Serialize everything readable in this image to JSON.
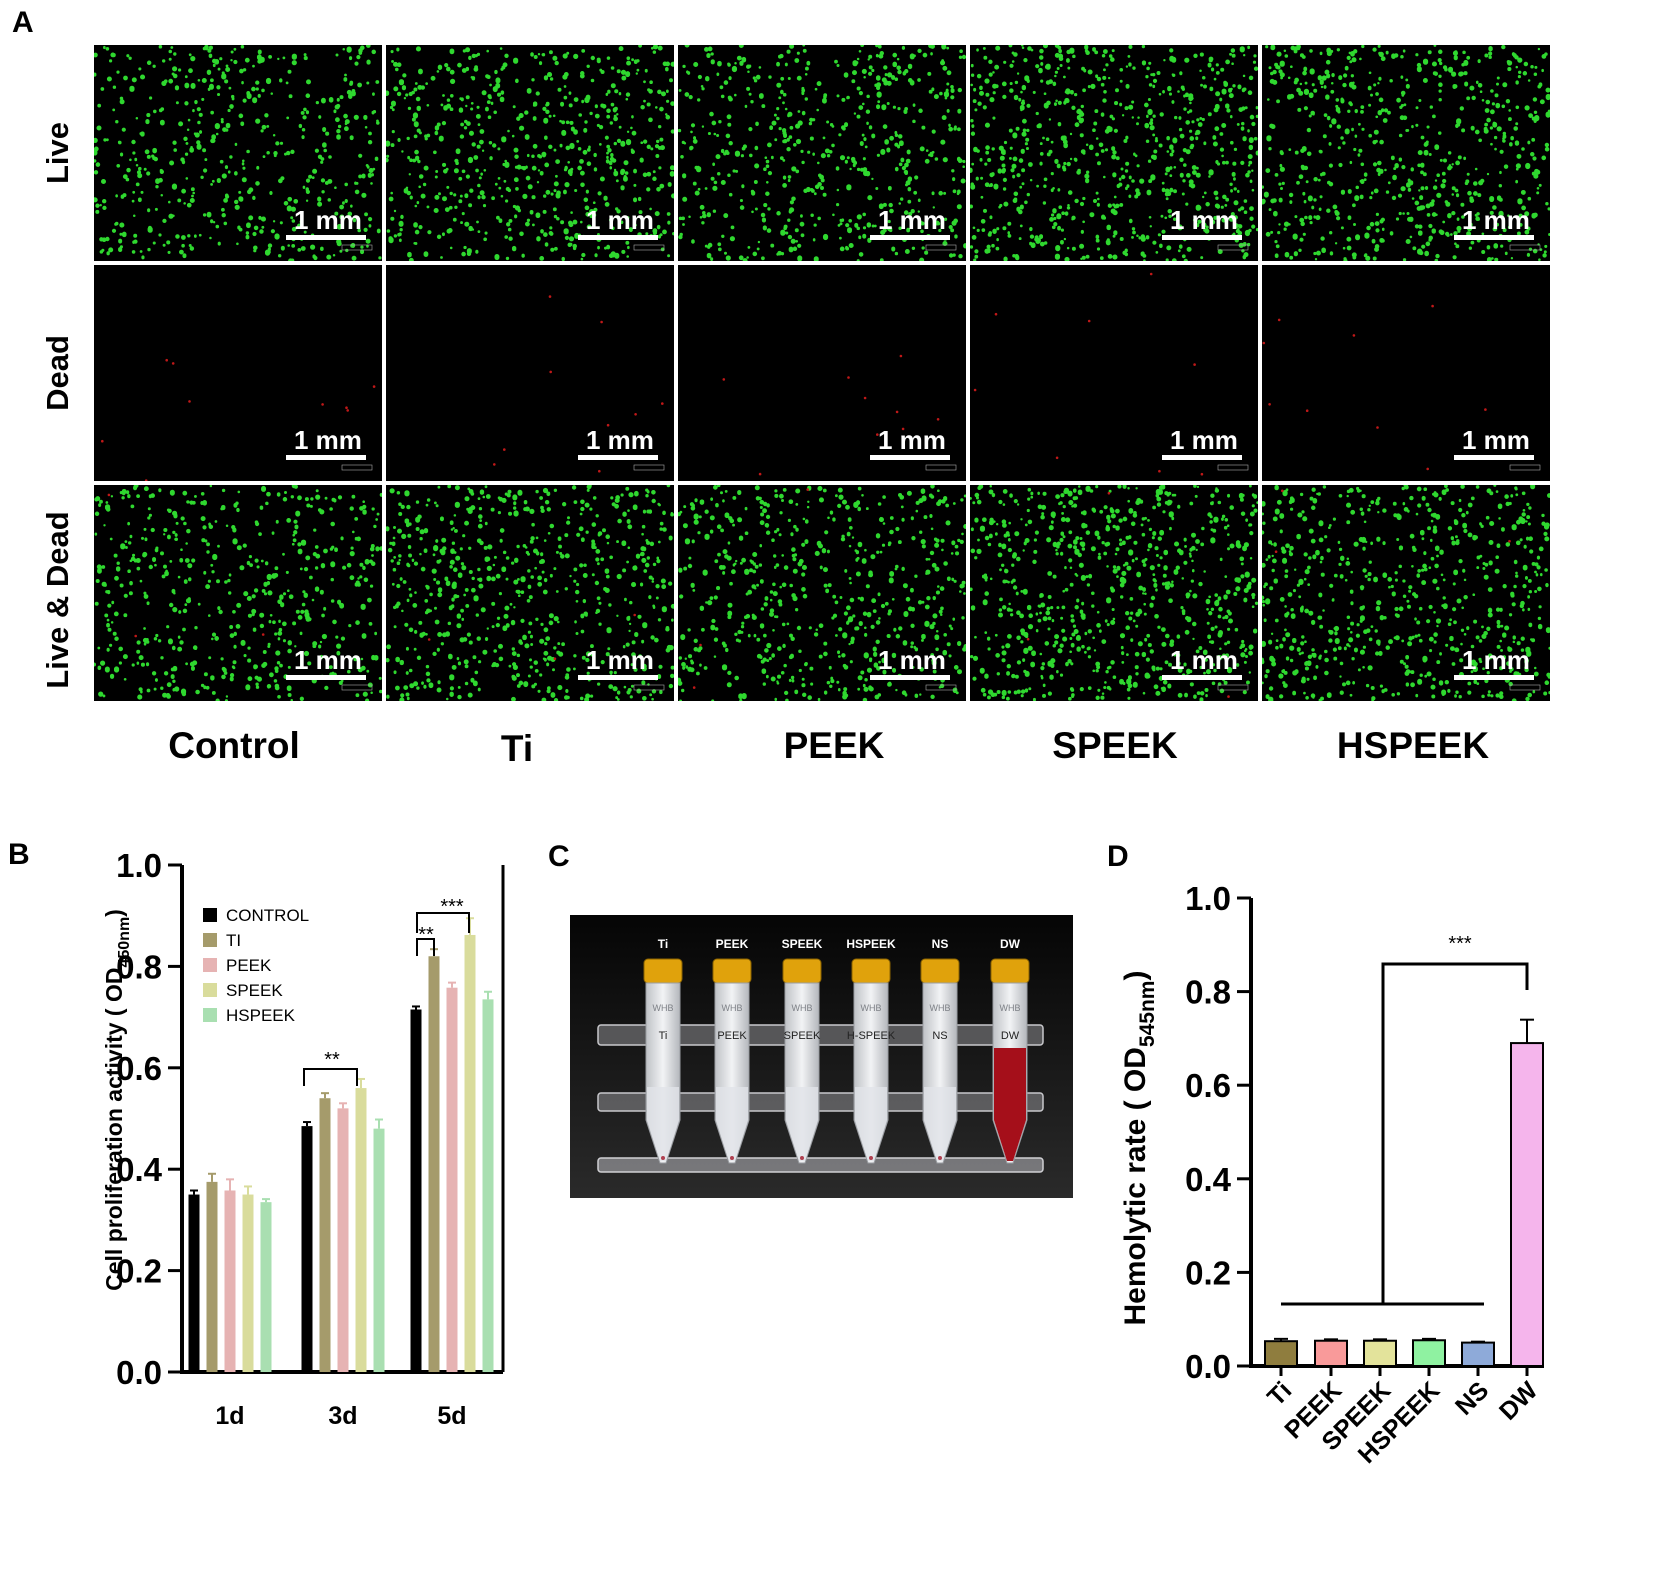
{
  "panel_a": {
    "letter": "A",
    "rows": [
      "Live",
      "Dead",
      "Live & Dead"
    ],
    "columns": [
      "Control",
      "Ti",
      "PEEK",
      "SPEEK",
      "HSPEEK"
    ],
    "scale_label": "1 mm"
  },
  "panel_c": {
    "letter": "C",
    "tube_labels": [
      "Ti",
      "PEEK",
      "SPEEK",
      "HSPEEK",
      "NS",
      "DW"
    ],
    "tube_writing": [
      "Ti",
      "PEEK",
      "SPEEK",
      "H-SPEEK",
      "NS",
      "DW"
    ],
    "cap_text": "WHB"
  },
  "chart_data": [
    {
      "panel": "B",
      "type": "bar",
      "ylabel": "Cell proliferation activity ( OD",
      "ylabel_sub": "450nm",
      "ylabel_end": ")",
      "ylim": [
        0,
        1.0
      ],
      "yticks": [
        "0.0",
        "0.2",
        "0.4",
        "0.6",
        "0.8",
        "1.0"
      ],
      "categories": [
        "1d",
        "3d",
        "5d"
      ],
      "legend_position": "top-left",
      "series": [
        {
          "name": "CONTROL",
          "color": "#000000",
          "values": [
            0.35,
            0.485,
            0.715
          ],
          "errors": [
            0.008,
            0.008,
            0.006
          ]
        },
        {
          "name": "TI",
          "color": "#a59b6b",
          "values": [
            0.375,
            0.54,
            0.82
          ],
          "errors": [
            0.016,
            0.01,
            0.014
          ]
        },
        {
          "name": "PEEK",
          "color": "#e6b3b3",
          "values": [
            0.358,
            0.52,
            0.758
          ],
          "errors": [
            0.022,
            0.01,
            0.01
          ]
        },
        {
          "name": "SPEEK",
          "color": "#d9dc9c",
          "values": [
            0.35,
            0.56,
            0.862
          ],
          "errors": [
            0.016,
            0.018,
            0.033
          ]
        },
        {
          "name": "HSPEEK",
          "color": "#a9dfb1",
          "values": [
            0.335,
            0.48,
            0.735
          ],
          "errors": [
            0.006,
            0.018,
            0.015
          ]
        }
      ],
      "annotations": [
        "**",
        "**",
        "***"
      ]
    },
    {
      "panel": "D",
      "type": "bar",
      "ylabel": "Hemolytic rate ( OD",
      "ylabel_sub": "545nm",
      "ylabel_end": ")",
      "ylim": [
        0,
        1.0
      ],
      "yticks": [
        "0.0",
        "0.2",
        "0.4",
        "0.6",
        "0.8",
        "1.0"
      ],
      "categories": [
        "Ti",
        "PEEK",
        "SPEEK",
        "HSPEEK",
        "NS",
        "DW"
      ],
      "colors": [
        "#8f7d3e",
        "#f99a9a",
        "#e3e39b",
        "#8ff2a1",
        "#8eaad9",
        "#f5b5ec"
      ],
      "values": [
        0.053,
        0.054,
        0.054,
        0.055,
        0.05,
        0.69
      ],
      "errors": [
        0.005,
        0.003,
        0.003,
        0.003,
        0.002,
        0.05
      ],
      "annotations": [
        "***"
      ]
    }
  ]
}
